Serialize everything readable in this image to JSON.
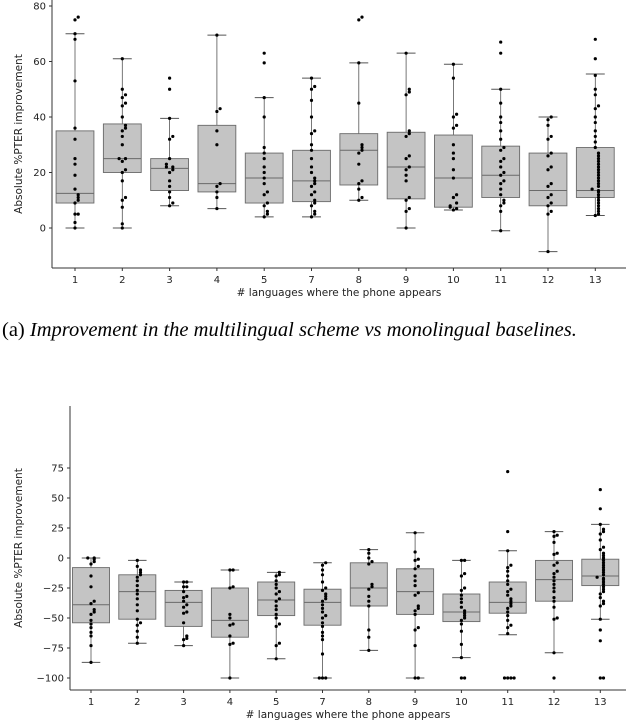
{
  "caption": {
    "label": "(a)",
    "text": "Improvement in the multilingual scheme vs monolingual baselines."
  },
  "chart_data": [
    {
      "type": "box",
      "title": "",
      "xlabel": "# languages where the phone appears",
      "ylabel": "Absolute %PTER improvement",
      "ylim": [
        -15,
        80
      ],
      "yticks": [
        0,
        20,
        40,
        60,
        80
      ],
      "categories": [
        "1",
        "2",
        "3",
        "4",
        "5",
        "7",
        "8",
        "9",
        "10",
        "11",
        "12",
        "13"
      ],
      "boxes": [
        {
          "q1": 9,
          "median": 12.5,
          "q3": 35,
          "whisker_low": 0,
          "whisker_high": 70
        },
        {
          "q1": 20,
          "median": 25,
          "q3": 37.5,
          "whisker_low": 0,
          "whisker_high": 61
        },
        {
          "q1": 13.5,
          "median": 21.5,
          "q3": 25,
          "whisker_low": 8,
          "whisker_high": 39.5
        },
        {
          "q1": 13,
          "median": 16,
          "q3": 37,
          "whisker_low": 7,
          "whisker_high": 69.5
        },
        {
          "q1": 9,
          "median": 18,
          "q3": 27,
          "whisker_low": 4,
          "whisker_high": 47
        },
        {
          "q1": 9.5,
          "median": 17,
          "q3": 28,
          "whisker_low": 4,
          "whisker_high": 54
        },
        {
          "q1": 15.5,
          "median": 28,
          "q3": 34,
          "whisker_low": 10,
          "whisker_high": 59.5
        },
        {
          "q1": 10.5,
          "median": 22,
          "q3": 34.5,
          "whisker_low": 0,
          "whisker_high": 63
        },
        {
          "q1": 7.5,
          "median": 18,
          "q3": 33.5,
          "whisker_low": 6.5,
          "whisker_high": 59
        },
        {
          "q1": 11,
          "median": 19,
          "q3": 29.5,
          "whisker_low": -1,
          "whisker_high": 50
        },
        {
          "q1": 8,
          "median": 13.5,
          "q3": 27,
          "whisker_low": -8.5,
          "whisker_high": 40
        },
        {
          "q1": 11,
          "median": 13.5,
          "q3": 29,
          "whisker_low": 4.5,
          "whisker_high": 55.5
        }
      ],
      "points": [
        [
          76,
          75,
          70,
          68,
          53,
          36,
          32,
          25,
          23,
          19,
          14,
          12,
          11,
          10,
          9,
          5,
          5,
          2,
          0
        ],
        [
          61,
          50,
          48,
          47,
          45,
          44,
          40,
          37,
          36,
          35,
          33,
          30,
          25,
          25,
          24,
          21,
          20,
          17,
          11,
          10,
          7.5,
          1.5,
          0
        ],
        [
          54,
          50,
          39.5,
          33,
          32,
          25,
          23,
          22,
          22,
          21,
          20,
          17,
          15,
          13,
          11,
          9,
          8
        ],
        [
          69.5,
          43,
          42,
          35,
          30,
          16,
          15,
          13,
          11,
          7
        ],
        [
          63,
          59.5,
          47,
          40,
          29,
          27,
          25,
          22,
          20,
          18,
          16,
          13,
          12,
          9,
          8,
          6,
          5,
          4
        ],
        [
          54,
          51,
          50,
          46,
          40,
          35,
          34,
          30,
          28,
          25,
          22,
          20,
          18,
          17,
          16,
          15,
          13,
          12,
          10,
          9,
          8,
          6,
          5,
          4
        ],
        [
          76,
          75,
          59.5,
          45,
          30,
          29,
          28,
          27,
          23,
          17,
          16,
          14,
          11,
          10
        ],
        [
          63,
          50,
          49,
          48,
          35,
          34,
          33,
          26,
          25,
          22,
          21,
          19,
          17,
          11,
          10,
          7,
          6,
          0
        ],
        [
          59,
          54,
          41,
          40,
          37,
          36,
          30,
          27,
          25,
          21,
          18,
          12,
          11,
          9,
          8,
          7.5,
          7,
          6.5
        ],
        [
          67,
          63,
          50,
          45,
          40,
          38,
          35,
          32,
          29,
          28,
          25,
          24,
          22,
          20,
          19,
          17,
          16,
          14,
          12,
          10,
          9,
          8,
          6,
          -1
        ],
        [
          40,
          39,
          37,
          33,
          32,
          27,
          26,
          22,
          21,
          16,
          15,
          12,
          11,
          9,
          8,
          6,
          5,
          -8.5
        ],
        [
          68,
          61,
          55,
          50,
          48,
          44,
          43,
          40,
          38,
          35,
          33,
          31,
          29,
          27,
          26,
          25,
          24,
          23,
          22,
          21,
          20,
          19,
          18,
          17,
          16,
          15,
          14,
          13.5,
          13,
          12,
          11,
          10,
          9,
          8,
          7,
          6,
          5,
          4.5
        ]
      ]
    },
    {
      "type": "box",
      "title": "",
      "xlabel": "# languages where the phone appears",
      "ylabel": "Absolute %PTER improvement",
      "ylim": [
        -110,
        80
      ],
      "yticks": [
        -100,
        -75,
        -50,
        -25,
        0,
        25,
        50,
        75
      ],
      "categories": [
        "1",
        "2",
        "3",
        "4",
        "5",
        "7",
        "8",
        "9",
        "10",
        "11",
        "12",
        "13"
      ],
      "boxes": [
        {
          "q1": -54,
          "median": -39,
          "q3": -8,
          "whisker_low": -87,
          "whisker_high": 0
        },
        {
          "q1": -51,
          "median": -28,
          "q3": -14,
          "whisker_low": -71,
          "whisker_high": -2
        },
        {
          "q1": -57,
          "median": -37,
          "q3": -27,
          "whisker_low": -73,
          "whisker_high": -20
        },
        {
          "q1": -66,
          "median": -52,
          "q3": -25,
          "whisker_low": -100,
          "whisker_high": -10
        },
        {
          "q1": -48,
          "median": -35,
          "q3": -20,
          "whisker_low": -84,
          "whisker_high": -12
        },
        {
          "q1": -56,
          "median": -37,
          "q3": -26,
          "whisker_low": -100,
          "whisker_high": -4
        },
        {
          "q1": -40,
          "median": -25,
          "q3": -4,
          "whisker_low": -77,
          "whisker_high": 7
        },
        {
          "q1": -47,
          "median": -28,
          "q3": -9,
          "whisker_low": -100,
          "whisker_high": 21
        },
        {
          "q1": -53,
          "median": -45,
          "q3": -30,
          "whisker_low": -83,
          "whisker_high": -2
        },
        {
          "q1": -46,
          "median": -37,
          "q3": -20,
          "whisker_low": -64,
          "whisker_high": 6
        },
        {
          "q1": -36,
          "median": -18,
          "q3": -2,
          "whisker_low": -79,
          "whisker_high": 22
        },
        {
          "q1": -23,
          "median": -15,
          "q3": -1,
          "whisker_low": -51,
          "whisker_high": 28
        }
      ],
      "points": [
        [
          0,
          0,
          -1,
          -3,
          -5,
          -15,
          -24,
          -36,
          -38,
          -43,
          -45,
          -47,
          -52,
          -55,
          -58,
          -62,
          -65,
          -73,
          -87
        ],
        [
          -2,
          -7,
          -10,
          -12,
          -14,
          -16,
          -19,
          -23,
          -27,
          -30,
          -34,
          -39,
          -44,
          -51,
          -54,
          -56,
          -61,
          -66,
          -71
        ],
        [
          -20,
          -20,
          -24,
          -24,
          -28,
          -32,
          -33,
          -36,
          -39,
          -41,
          -45,
          -46,
          -54,
          -65,
          -67,
          -68,
          -73
        ],
        [
          -10,
          -10,
          -24,
          -25,
          -47,
          -50,
          -55,
          -56,
          -65,
          -71,
          -72,
          -100
        ],
        [
          -12,
          -14,
          -15,
          -19,
          -22,
          -25,
          -28,
          -30,
          -34,
          -36,
          -40,
          -43,
          -47,
          -50,
          -55,
          -57,
          -71,
          -73,
          -84
        ],
        [
          -4,
          -6,
          -10,
          -14,
          -20,
          -25,
          -27,
          -30,
          -32,
          -34,
          -36,
          -39,
          -42,
          -45,
          -48,
          -50,
          -54,
          -57,
          -62,
          -65,
          -68,
          -80,
          -100,
          -100,
          -100
        ],
        [
          7,
          4,
          0,
          -3,
          -5,
          -22,
          -24,
          -26,
          -32,
          -36,
          -40,
          -60,
          -66,
          -77
        ],
        [
          21,
          5,
          -1,
          -2,
          -7,
          -9,
          -15,
          -19,
          -23,
          -29,
          -31,
          -40,
          -42,
          -44,
          -47,
          -58,
          -60,
          -73,
          -100,
          -100
        ],
        [
          -2,
          -2,
          -13,
          -15,
          -25,
          -27,
          -31,
          -34,
          -37,
          -41,
          -44,
          -46,
          -48,
          -50,
          -52,
          -55,
          -61,
          -72,
          -83,
          -100,
          -100
        ],
        [
          72,
          22,
          6,
          -6,
          -8,
          -11,
          -15,
          -19,
          -22,
          -26,
          -28,
          -31,
          -34,
          -36,
          -38,
          -40,
          -42,
          -45,
          -48,
          -52,
          -56,
          -58,
          -63,
          -100,
          -100,
          -100,
          -100
        ],
        [
          22,
          19,
          18,
          13,
          4,
          3,
          -4,
          -6,
          -11,
          -13,
          -16,
          -19,
          -22,
          -25,
          -28,
          -33,
          -36,
          -41,
          -50,
          -51,
          -79,
          -100
        ],
        [
          57,
          41,
          28,
          24,
          22,
          20,
          15,
          9,
          7,
          4,
          2,
          0,
          -2,
          -4,
          -6,
          -8,
          -10,
          -12,
          -14,
          -16,
          -17,
          -18,
          -20,
          -22,
          -24,
          -26,
          -28,
          -30,
          -33,
          -36,
          -38,
          -40,
          -51,
          -60,
          -69,
          -100,
          -100
        ]
      ]
    }
  ]
}
